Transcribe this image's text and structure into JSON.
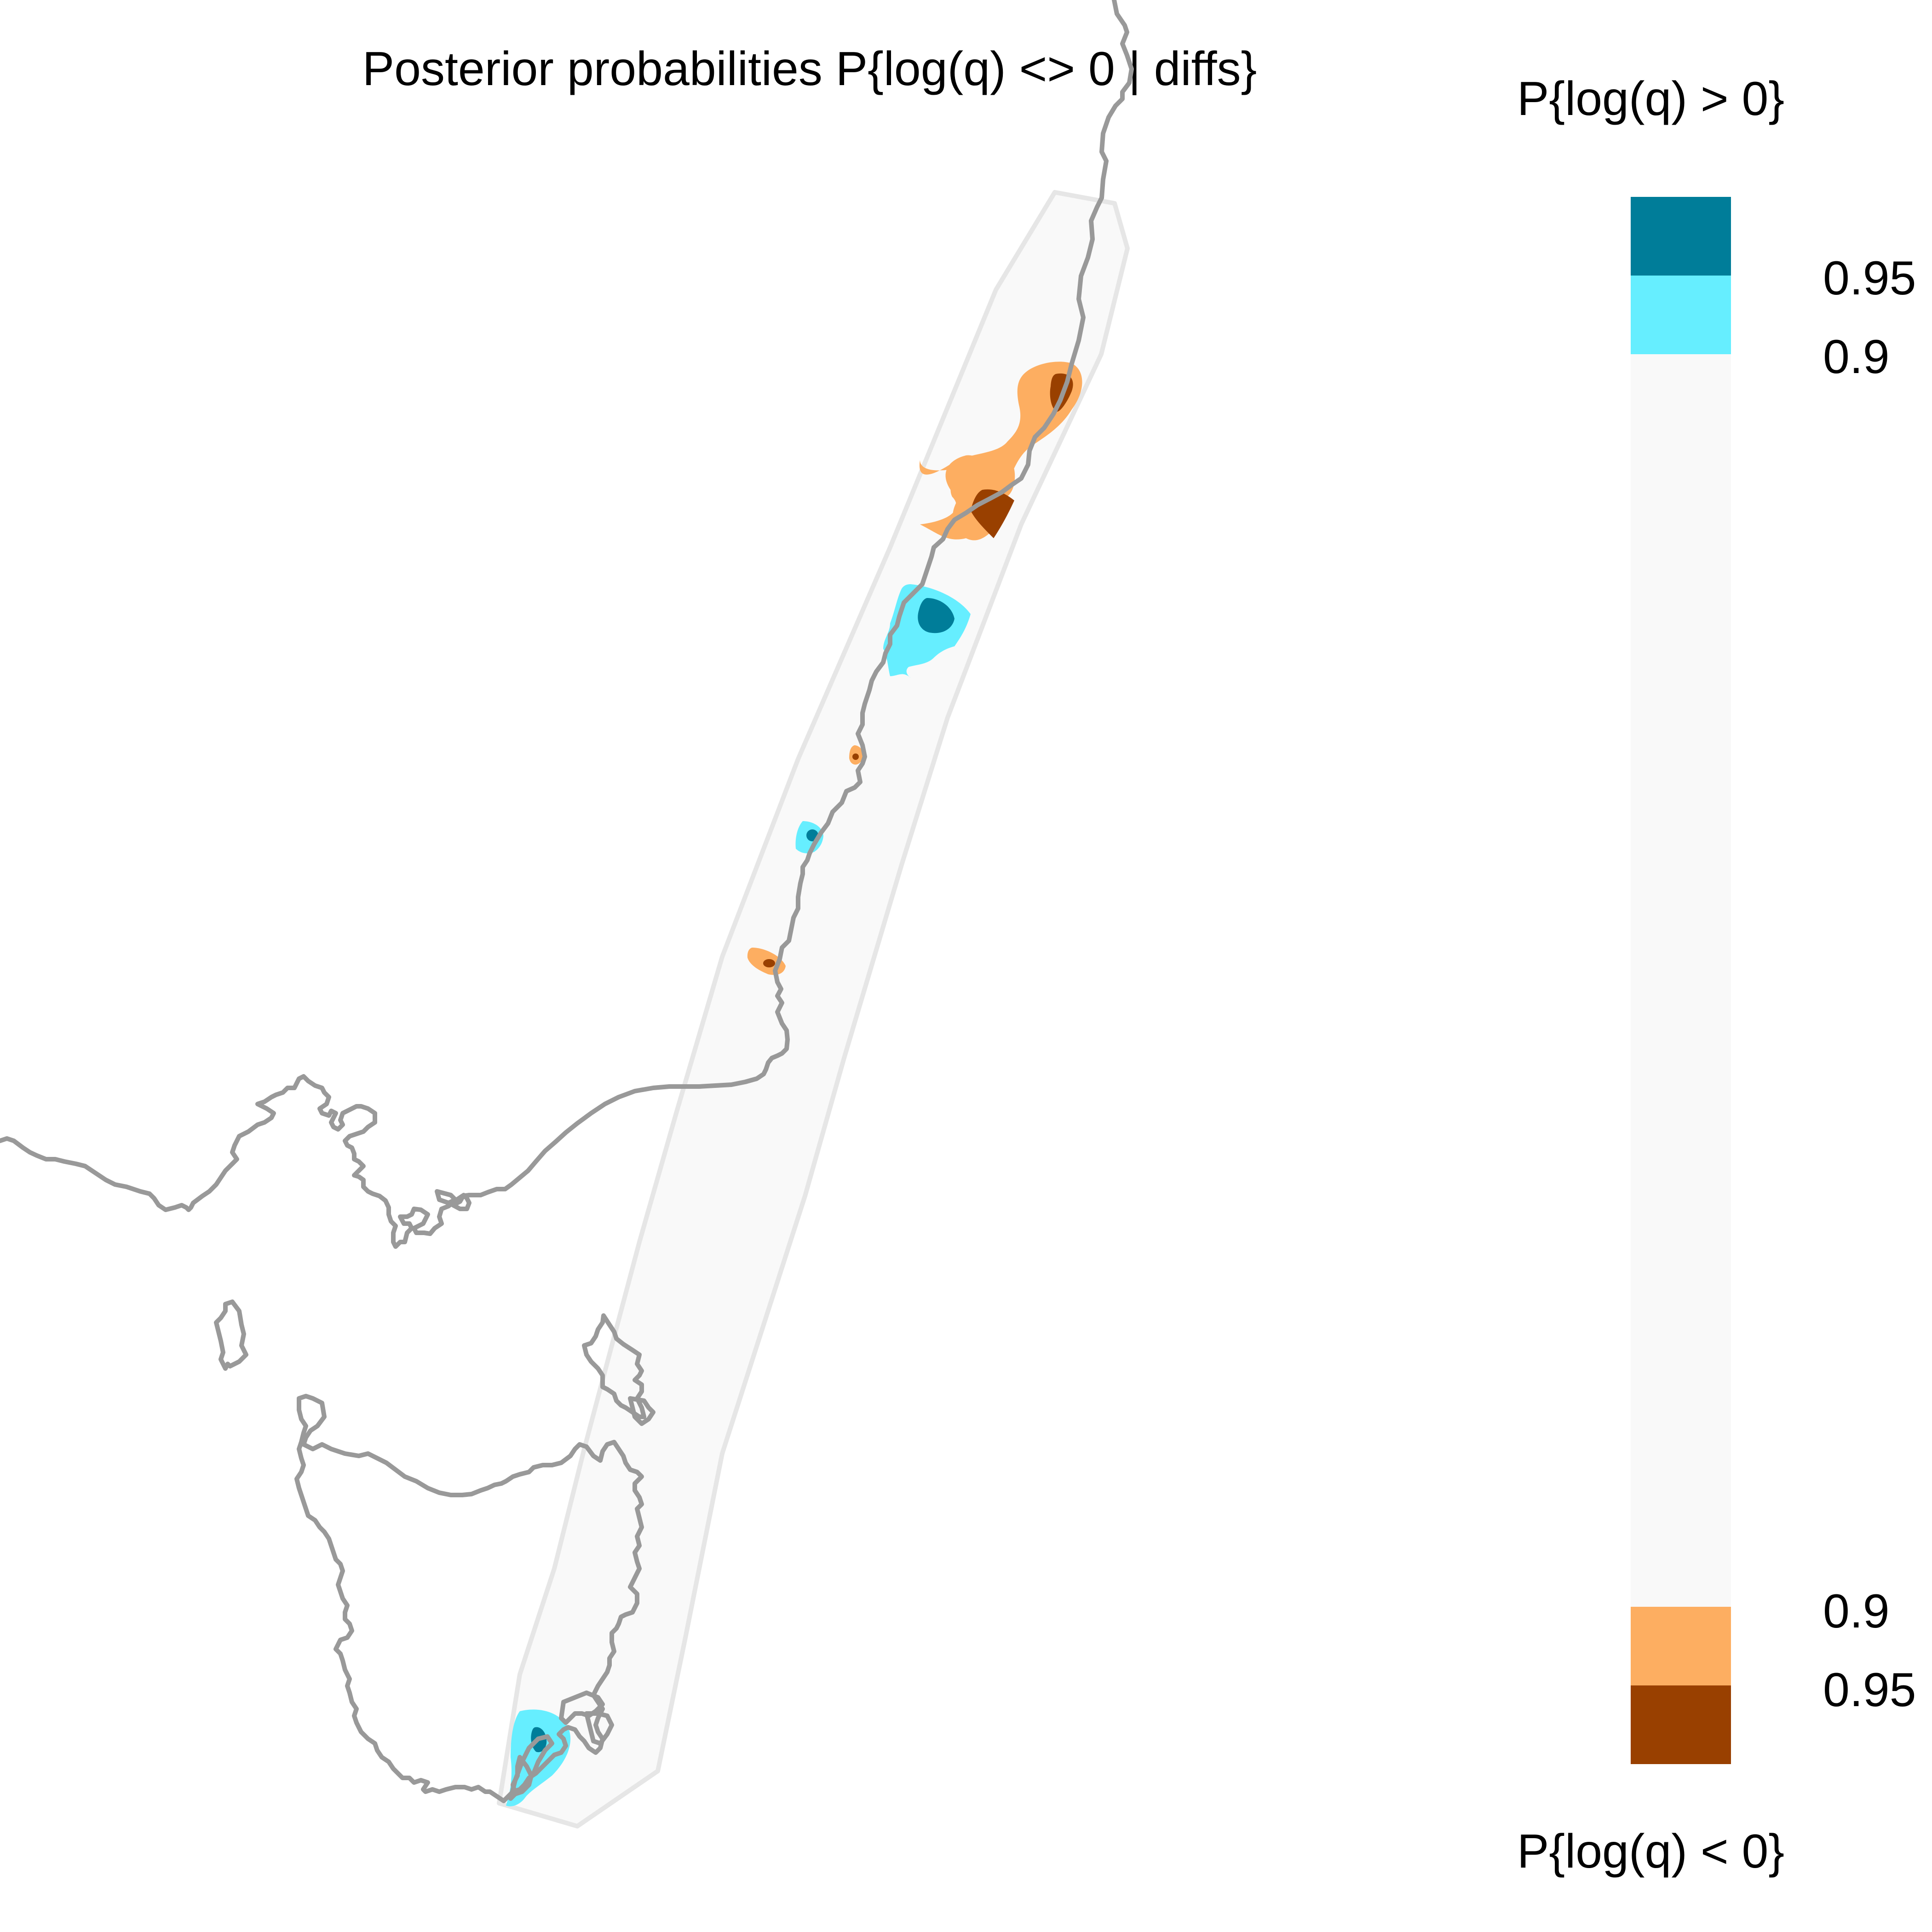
{
  "title": "Posterior probabilities P{log(q) <> 0 | diffs}",
  "legend": {
    "top_label": "P{log(q) > 0}",
    "bottom_label": "P{log(q) < 0}",
    "tick_labels": {
      "high_095": "0.95",
      "high_09": "0.9",
      "low_09": "0.9",
      "low_095": "0.95"
    }
  },
  "colors": {
    "high_095": "#007d99",
    "high_09": "#66eeff",
    "middle": "#f9f9f9",
    "low_09": "#fdae61",
    "low_095": "#994000",
    "coast": "#999999",
    "habitat_border": "#e6e6e6"
  }
}
